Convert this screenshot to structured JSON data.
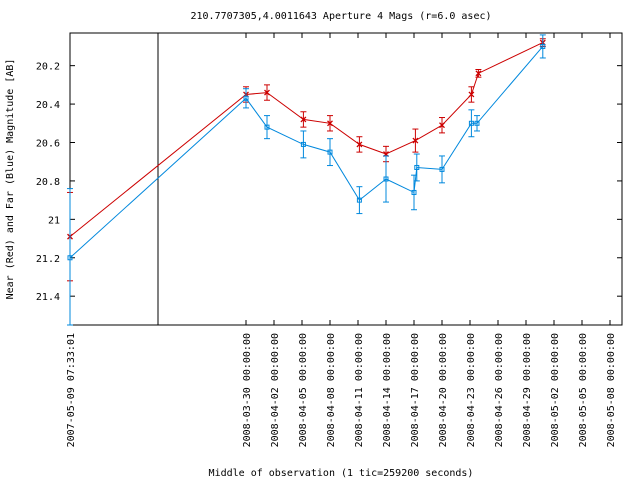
{
  "chart_data": {
    "type": "line",
    "title": "210.7707305,4.0011643   Aperture 4 Mags (r=6.0 asec)",
    "xlabel": "Middle of observation (1 tic=259200 seconds)",
    "ylabel": "Near (Red) and Far (Blue) Magnitude [AB]",
    "y_inverted": true,
    "ylim": [
      21.55,
      20.03
    ],
    "y_ticks": [
      20.2,
      20.4,
      20.6,
      20.8,
      21,
      21.2,
      21.4
    ],
    "y_tick_labels": [
      "20.2",
      "20.4",
      "20.6",
      "20.8",
      "21",
      "21.2",
      "21.4"
    ],
    "x_tick_labels": [
      "2007-05-09 07:33:01",
      "2008-03-30 00:00:00",
      "2008-04-02 00:00:00",
      "2008-04-05 00:00:00",
      "2008-04-08 00:00:00",
      "2008-04-11 00:00:00",
      "2008-04-14 00:00:00",
      "2008-04-17 00:00:00",
      "2008-04-20 00:00:00",
      "2008-04-23 00:00:00",
      "2008-04-26 00:00:00",
      "2008-04-29 00:00:00",
      "2008-05-02 00:00:00",
      "2008-05-05 00:00:00",
      "2008-05-08 00:00:00"
    ],
    "axis_break_after_first_tick": true,
    "series": [
      {
        "color": "#cc0000",
        "marker": "x",
        "points": [
          {
            "x": 0,
            "y": 21.09,
            "err": 0.23
          },
          {
            "x": 1,
            "y": 20.35,
            "err": 0.04
          },
          {
            "x": 1.75,
            "y": 20.34,
            "err": 0.04
          },
          {
            "x": 3.05,
            "y": 20.48,
            "err": 0.04
          },
          {
            "x": 4.0,
            "y": 20.5,
            "err": 0.04
          },
          {
            "x": 5.05,
            "y": 20.61,
            "err": 0.04
          },
          {
            "x": 6.0,
            "y": 20.66,
            "err": 0.04
          },
          {
            "x": 7.05,
            "y": 20.59,
            "err": 0.06
          },
          {
            "x": 8.0,
            "y": 20.51,
            "err": 0.04
          },
          {
            "x": 9.05,
            "y": 20.35,
            "err": 0.04
          },
          {
            "x": 9.3,
            "y": 20.24,
            "err": 0.02
          },
          {
            "x": 11.6,
            "y": 20.08,
            "err": 0.02
          }
        ]
      },
      {
        "color": "#0088dd",
        "marker": "square",
        "points": [
          {
            "x": 0,
            "y": 21.2,
            "err": 0.36
          },
          {
            "x": 1,
            "y": 20.37,
            "err": 0.05
          },
          {
            "x": 1.75,
            "y": 20.52,
            "err": 0.06
          },
          {
            "x": 3.05,
            "y": 20.61,
            "err": 0.07
          },
          {
            "x": 4.0,
            "y": 20.65,
            "err": 0.07
          },
          {
            "x": 5.05,
            "y": 20.9,
            "err": 0.07
          },
          {
            "x": 6.0,
            "y": 20.79,
            "err": 0.12
          },
          {
            "x": 7.0,
            "y": 20.86,
            "err": 0.09
          },
          {
            "x": 7.1,
            "y": 20.73,
            "err": 0.07
          },
          {
            "x": 8.0,
            "y": 20.74,
            "err": 0.07
          },
          {
            "x": 9.05,
            "y": 20.5,
            "err": 0.07
          },
          {
            "x": 9.25,
            "y": 20.5,
            "err": 0.04
          },
          {
            "x": 11.6,
            "y": 20.1,
            "err": 0.06
          }
        ]
      }
    ]
  }
}
